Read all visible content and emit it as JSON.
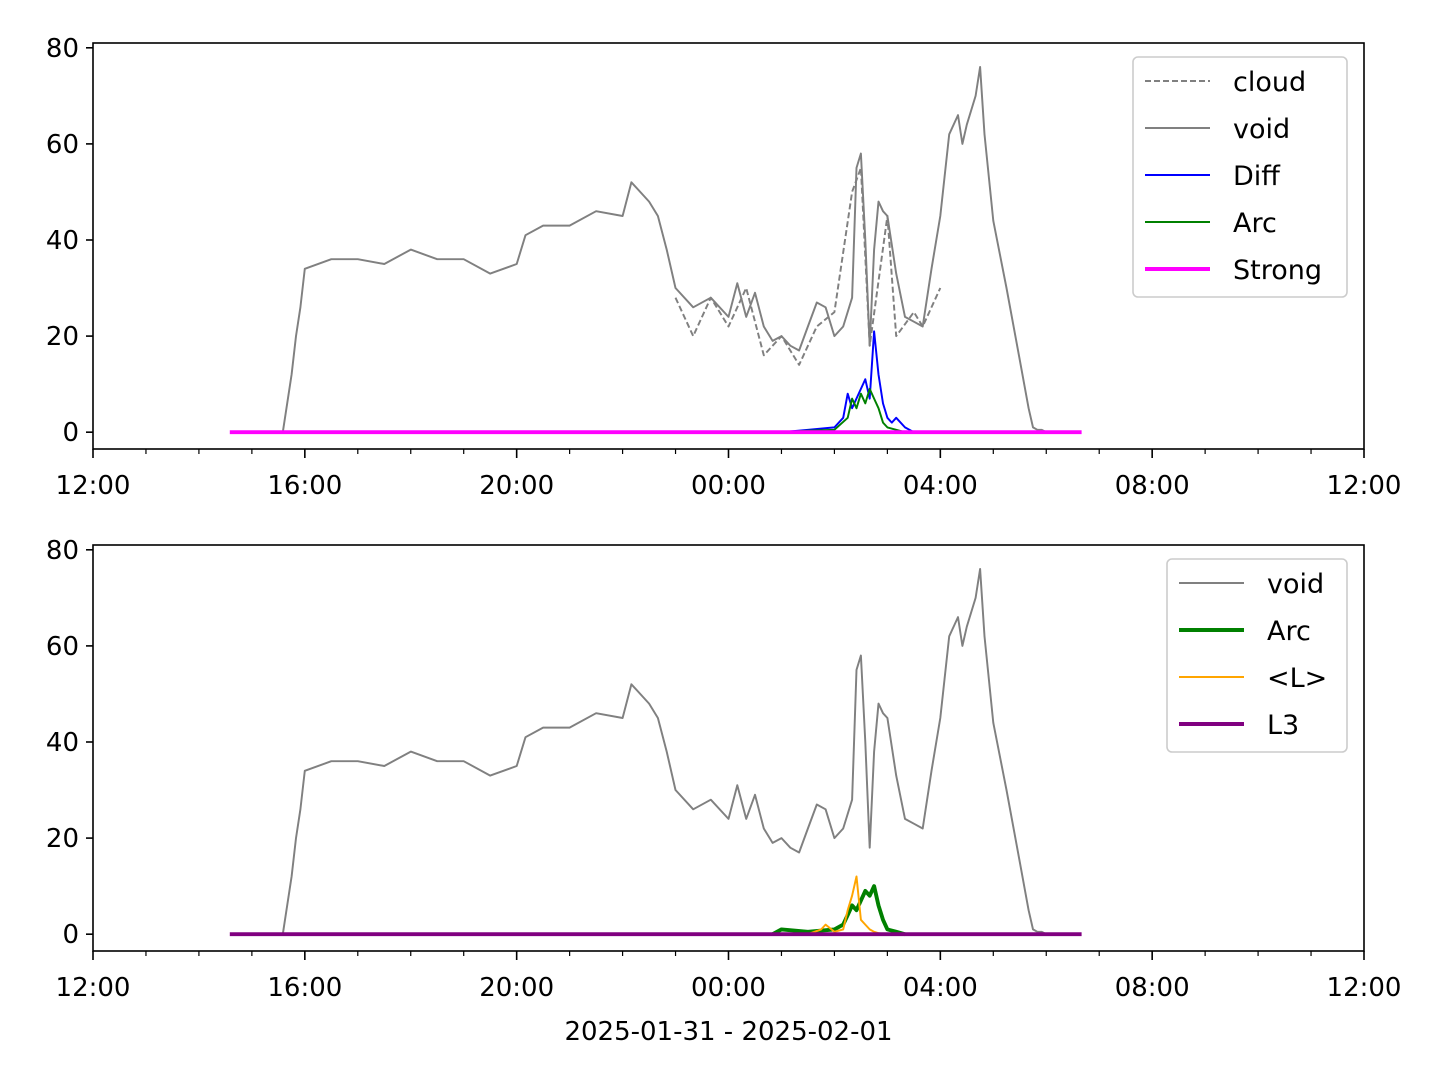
{
  "chart_data": [
    {
      "type": "line",
      "title": "",
      "xlabel": "",
      "ylabel": "",
      "xlim": [
        "2025-01-31 12:00",
        "2025-02-01 12:00"
      ],
      "ylim": [
        -3.5,
        81
      ],
      "x_ticks": [
        "12:00",
        "16:00",
        "20:00",
        "00:00",
        "04:00",
        "08:00",
        "12:00"
      ],
      "y_ticks": [
        0,
        20,
        40,
        60,
        80
      ],
      "grid": false,
      "legend_position": "upper right",
      "series": [
        {
          "name": "cloud",
          "color": "#808080",
          "style": "dashed",
          "width": 1.5,
          "x": [
            "23:00",
            "23:20",
            "23:40",
            "00:00",
            "00:20",
            "00:40",
            "01:00",
            "01:20",
            "01:40",
            "02:00",
            "02:20",
            "02:30",
            "02:40",
            "03:00",
            "03:10",
            "03:30",
            "03:40",
            "04:00"
          ],
          "y": [
            28,
            20,
            28,
            22,
            30,
            16,
            20,
            14,
            22,
            25,
            50,
            55,
            18,
            45,
            20,
            25,
            22,
            30
          ]
        },
        {
          "name": "void",
          "color": "#808080",
          "style": "solid",
          "width": 1.5,
          "x": [
            "15:35",
            "15:45",
            "15:50",
            "15:55",
            "16:00",
            "16:30",
            "17:00",
            "17:30",
            "18:00",
            "18:30",
            "19:00",
            "19:30",
            "20:00",
            "20:10",
            "20:30",
            "21:00",
            "21:30",
            "22:00",
            "22:10",
            "22:30",
            "22:40",
            "22:50",
            "23:00",
            "23:20",
            "23:40",
            "00:00",
            "00:10",
            "00:20",
            "00:30",
            "00:40",
            "00:50",
            "01:00",
            "01:10",
            "01:20",
            "01:30",
            "01:40",
            "01:50",
            "02:00",
            "02:10",
            "02:20",
            "02:25",
            "02:30",
            "02:35",
            "02:40",
            "02:45",
            "02:50",
            "02:55",
            "03:00",
            "03:10",
            "03:20",
            "03:30",
            "03:40",
            "03:50",
            "04:00",
            "04:10",
            "04:20",
            "04:25",
            "04:30",
            "04:40",
            "04:45",
            "04:50",
            "05:00",
            "05:15",
            "05:30",
            "05:40",
            "05:45",
            "05:50",
            "05:55",
            "06:00",
            "06:05"
          ],
          "y": [
            0,
            12,
            20,
            26,
            34,
            36,
            36,
            35,
            38,
            36,
            36,
            33,
            35,
            41,
            43,
            43,
            46,
            45,
            52,
            48,
            45,
            38,
            30,
            26,
            28,
            24,
            31,
            24,
            29,
            22,
            19,
            20,
            18,
            17,
            22,
            27,
            26,
            20,
            22,
            28,
            55,
            58,
            40,
            18,
            38,
            48,
            46,
            45,
            33,
            24,
            23,
            22,
            34,
            45,
            62,
            66,
            60,
            64,
            70,
            76,
            62,
            44,
            30,
            15,
            5,
            1,
            0.5,
            0.5,
            0,
            0
          ]
        },
        {
          "name": "Diff",
          "color": "#0000ff",
          "style": "solid",
          "width": 1.5,
          "x": [
            "01:00",
            "01:30",
            "02:00",
            "02:10",
            "02:15",
            "02:20",
            "02:30",
            "02:35",
            "02:40",
            "02:45",
            "02:50",
            "02:55",
            "03:00",
            "03:05",
            "03:10",
            "03:20",
            "03:30"
          ],
          "y": [
            0,
            0.5,
            1,
            3,
            8,
            5,
            9,
            11,
            7,
            21,
            12,
            6,
            3,
            2,
            3,
            1,
            0
          ]
        },
        {
          "name": "Arc",
          "color": "#008000",
          "style": "solid",
          "width": 1.5,
          "x": [
            "01:00",
            "01:30",
            "02:00",
            "02:15",
            "02:20",
            "02:25",
            "02:30",
            "02:35",
            "02:40",
            "02:45",
            "02:50",
            "02:55",
            "03:00",
            "03:10",
            "03:20"
          ],
          "y": [
            0,
            0.3,
            0.5,
            3,
            7,
            5,
            8,
            6,
            9,
            7,
            5,
            2,
            1,
            0.5,
            0
          ]
        },
        {
          "name": "Strong",
          "color": "#ff00ff",
          "style": "solid",
          "width": 3,
          "x": [
            "14:35",
            "06:40"
          ],
          "y": [
            0,
            0
          ]
        }
      ]
    },
    {
      "type": "line",
      "title": "",
      "xlabel": "2025-01-31 - 2025-02-01",
      "ylabel": "",
      "xlim": [
        "2025-01-31 12:00",
        "2025-02-01 12:00"
      ],
      "ylim": [
        -3.5,
        81
      ],
      "x_ticks": [
        "12:00",
        "16:00",
        "20:00",
        "00:00",
        "04:00",
        "08:00",
        "12:00"
      ],
      "y_ticks": [
        0,
        20,
        40,
        60,
        80
      ],
      "grid": false,
      "legend_position": "upper right",
      "series": [
        {
          "name": "void",
          "color": "#808080",
          "style": "solid",
          "width": 1.5,
          "x": [
            "15:35",
            "15:45",
            "15:50",
            "15:55",
            "16:00",
            "16:30",
            "17:00",
            "17:30",
            "18:00",
            "18:30",
            "19:00",
            "19:30",
            "20:00",
            "20:10",
            "20:30",
            "21:00",
            "21:30",
            "22:00",
            "22:10",
            "22:30",
            "22:40",
            "22:50",
            "23:00",
            "23:20",
            "23:40",
            "00:00",
            "00:10",
            "00:20",
            "00:30",
            "00:40",
            "00:50",
            "01:00",
            "01:10",
            "01:20",
            "01:30",
            "01:40",
            "01:50",
            "02:00",
            "02:10",
            "02:20",
            "02:25",
            "02:30",
            "02:35",
            "02:40",
            "02:45",
            "02:50",
            "02:55",
            "03:00",
            "03:10",
            "03:20",
            "03:30",
            "03:40",
            "03:50",
            "04:00",
            "04:10",
            "04:20",
            "04:25",
            "04:30",
            "04:40",
            "04:45",
            "04:50",
            "05:00",
            "05:15",
            "05:30",
            "05:40",
            "05:45",
            "05:50",
            "05:55",
            "06:00",
            "06:05"
          ],
          "y": [
            0,
            12,
            20,
            26,
            34,
            36,
            36,
            35,
            38,
            36,
            36,
            33,
            35,
            41,
            43,
            43,
            46,
            45,
            52,
            48,
            45,
            38,
            30,
            26,
            28,
            24,
            31,
            24,
            29,
            22,
            19,
            20,
            18,
            17,
            22,
            27,
            26,
            20,
            22,
            28,
            55,
            58,
            40,
            18,
            38,
            48,
            46,
            45,
            33,
            24,
            23,
            22,
            34,
            45,
            62,
            66,
            60,
            64,
            70,
            76,
            62,
            44,
            30,
            15,
            5,
            1,
            0.5,
            0.5,
            0,
            0
          ]
        },
        {
          "name": "Arc",
          "color": "#008000",
          "style": "solid",
          "width": 3,
          "x": [
            "00:50",
            "01:00",
            "01:30",
            "02:00",
            "02:10",
            "02:15",
            "02:20",
            "02:25",
            "02:30",
            "02:35",
            "02:40",
            "02:45",
            "02:50",
            "02:55",
            "03:00",
            "03:10",
            "03:20"
          ],
          "y": [
            0,
            1,
            0.5,
            1,
            2,
            4,
            6,
            5,
            7,
            9,
            8,
            10,
            6,
            3,
            1,
            0.5,
            0
          ]
        },
        {
          "name": "<L>",
          "color": "#ffa500",
          "style": "solid",
          "width": 1.5,
          "x": [
            "01:30",
            "01:45",
            "01:50",
            "02:00",
            "02:10",
            "02:15",
            "02:20",
            "02:25",
            "02:30",
            "02:35",
            "02:40",
            "02:45",
            "02:50",
            "03:00"
          ],
          "y": [
            0,
            1,
            2,
            0.5,
            1,
            5,
            8,
            12,
            3,
            2,
            1,
            0.5,
            0.2,
            0
          ]
        },
        {
          "name": "L3",
          "color": "#800080",
          "style": "solid",
          "width": 3,
          "x": [
            "14:35",
            "06:40"
          ],
          "y": [
            0,
            0
          ]
        }
      ]
    }
  ]
}
